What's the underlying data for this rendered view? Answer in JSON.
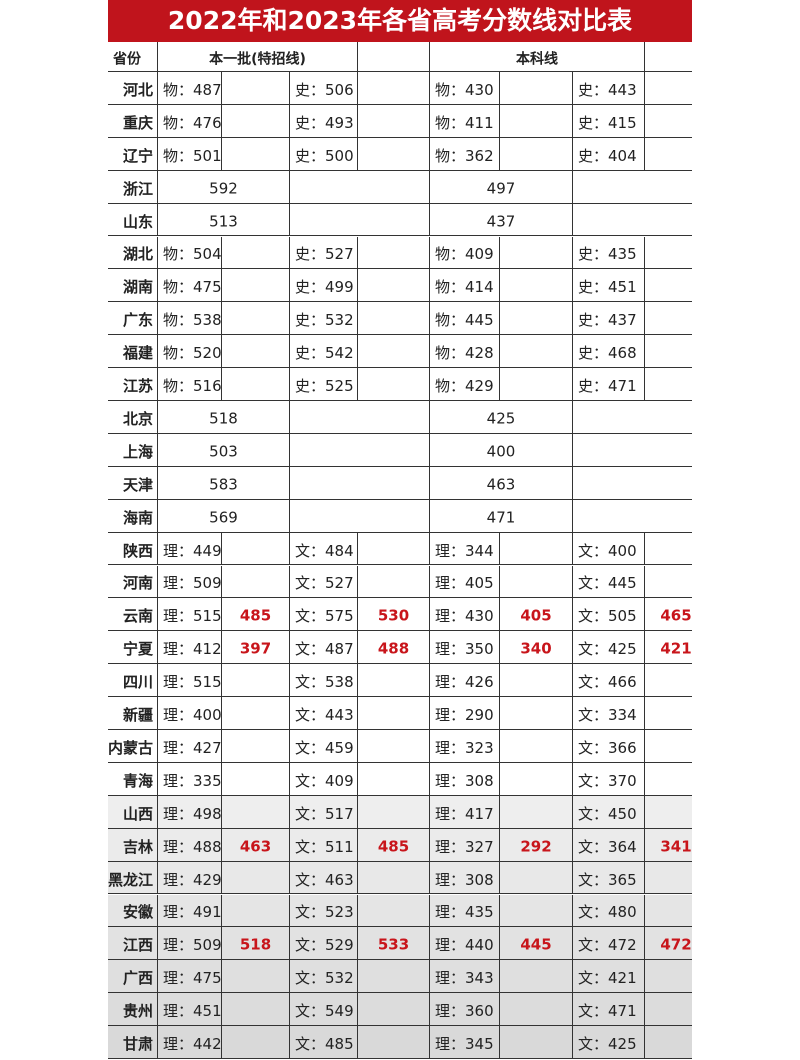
{
  "title": "2022年和2023年各省高考分数线对比表",
  "header": {
    "province": "省份",
    "batch1": "本一批(特招线)",
    "bachelor": "本科线"
  },
  "rows": [
    [
      "河北",
      "物：487",
      "",
      "史：506",
      "",
      "物：430",
      "",
      "史：443",
      ""
    ],
    [
      "重庆",
      "物：476",
      "",
      "史：493",
      "",
      "物：411",
      "",
      "史：415",
      ""
    ],
    [
      "辽宁",
      "物：501",
      "",
      "史：500",
      "",
      "物：362",
      "",
      "史：404",
      ""
    ],
    [
      "浙江",
      "592",
      "497"
    ],
    [
      "山东",
      "513",
      "437"
    ],
    [
      "湖北",
      "物：504",
      "",
      "史：527",
      "",
      "物：409",
      "",
      "史：435",
      ""
    ],
    [
      "湖南",
      "物：475",
      "",
      "史：499",
      "",
      "物：414",
      "",
      "史：451",
      ""
    ],
    [
      "广东",
      "物：538",
      "",
      "史：532",
      "",
      "物：445",
      "",
      "史：437",
      ""
    ],
    [
      "福建",
      "物：520",
      "",
      "史：542",
      "",
      "物：428",
      "",
      "史：468",
      ""
    ],
    [
      "江苏",
      "物：516",
      "",
      "史：525",
      "",
      "物：429",
      "",
      "史：471",
      ""
    ],
    [
      "北京",
      "518",
      "425"
    ],
    [
      "上海",
      "503",
      "400"
    ],
    [
      "天津",
      "583",
      "463"
    ],
    [
      "海南",
      "569",
      "471"
    ],
    [
      "陕西",
      "理：449",
      "",
      "文：484",
      "",
      "理：344",
      "",
      "文：400",
      ""
    ],
    [
      "河南",
      "理：509",
      "",
      "文：527",
      "",
      "理：405",
      "",
      "文：445",
      ""
    ],
    [
      "云南",
      "理：515",
      "485",
      "文：575",
      "530",
      "理：430",
      "405",
      "文：505",
      "465"
    ],
    [
      "宁夏",
      "理：412",
      "397",
      "文：487",
      "488",
      "理：350",
      "340",
      "文：425",
      "421"
    ],
    [
      "四川",
      "理：515",
      "",
      "文：538",
      "",
      "理：426",
      "",
      "文：466",
      ""
    ],
    [
      "新疆",
      "理：400",
      "",
      "文：443",
      "",
      "理：290",
      "",
      "文：334",
      ""
    ],
    [
      "内蒙古",
      "理：427",
      "",
      "文：459",
      "",
      "理：323",
      "",
      "文：366",
      ""
    ],
    [
      "青海",
      "理：335",
      "",
      "文：409",
      "",
      "理：308",
      "",
      "文：370",
      ""
    ],
    [
      "山西",
      "理：498",
      "",
      "文：517",
      "",
      "理：417",
      "",
      "文：450",
      ""
    ],
    [
      "吉林",
      "理：488",
      "463",
      "文：511",
      "485",
      "理：327",
      "292",
      "文：364",
      "341"
    ],
    [
      "黑龙江",
      "理：429",
      "",
      "文：463",
      "",
      "理：308",
      "",
      "文：365",
      ""
    ],
    [
      "安徽",
      "理：491",
      "",
      "文：523",
      "",
      "理：435",
      "",
      "文：480",
      ""
    ],
    [
      "江西",
      "理：509",
      "518",
      "文：529",
      "533",
      "理：440",
      "445",
      "文：472",
      "472"
    ],
    [
      "广西",
      "理：475",
      "",
      "文：532",
      "",
      "理：343",
      "",
      "文：421",
      ""
    ],
    [
      "贵州",
      "理：451",
      "",
      "文：549",
      "",
      "理：360",
      "",
      "文：471",
      ""
    ],
    [
      "甘肃",
      "理：442",
      "",
      "文：485",
      "",
      "理：345",
      "",
      "文：425",
      ""
    ]
  ]
}
